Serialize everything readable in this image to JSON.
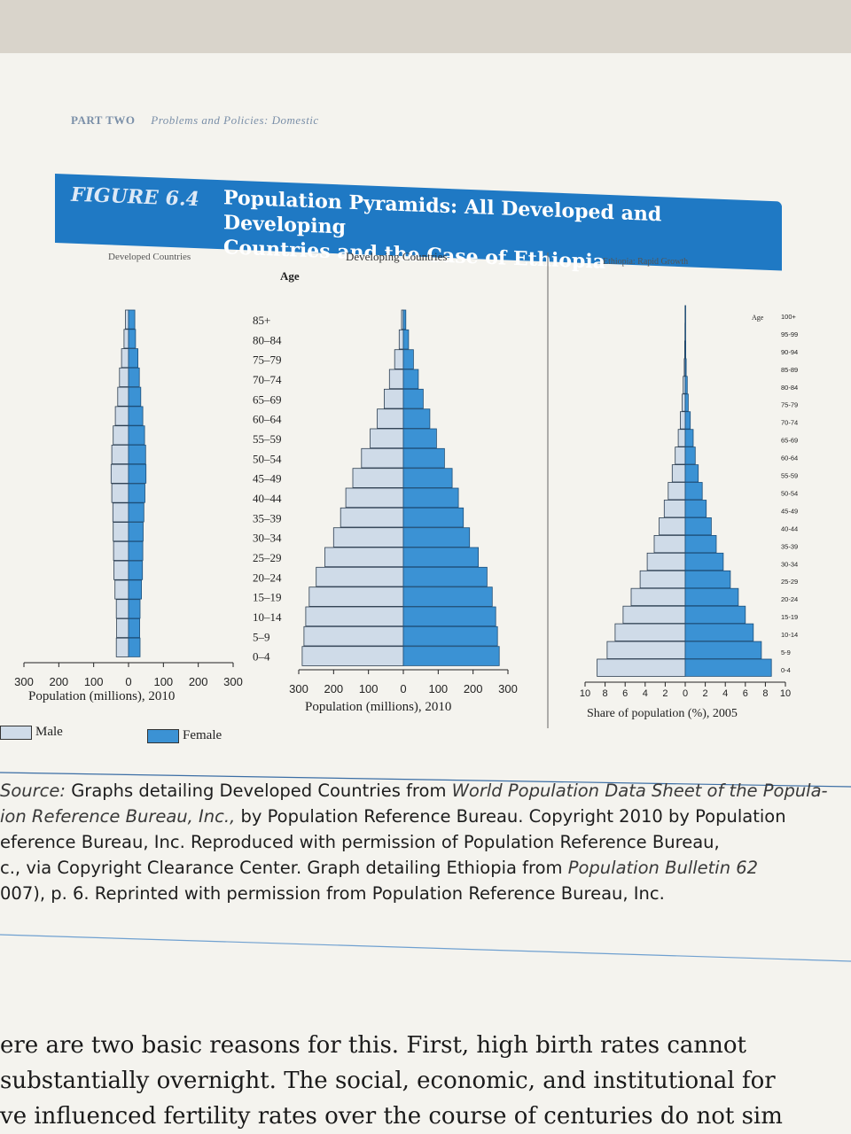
{
  "running_head": {
    "part": "PART TWO",
    "section": "Problems and Policies: Domestic"
  },
  "figure": {
    "number": "FIGURE 6.4",
    "title_line1": "Population Pyramids: All Developed and Developing",
    "title_line2": "Countries and the Case of Ethiopia"
  },
  "legend": {
    "male": "Male",
    "female": "Female"
  },
  "colors": {
    "male": "#cfdbe8",
    "female": "#3b92d4",
    "banner": "#1f79c4"
  },
  "chart_data": [
    {
      "type": "population-pyramid",
      "title": "Developed Countries",
      "xlabel": "Population (millions), 2010",
      "ticks": [
        "300",
        "200",
        "100",
        "0",
        "100",
        "200",
        "300"
      ],
      "xlim": [
        -300,
        300
      ],
      "age_groups": [
        "0-4",
        "5-9",
        "10-14",
        "15-19",
        "20-24",
        "25-29",
        "30-34",
        "35-39",
        "40-44",
        "45-49",
        "50-54",
        "55-59",
        "60-64",
        "65-69",
        "70-74",
        "75-79",
        "80-84",
        "85+"
      ],
      "series": [
        {
          "name": "Male",
          "values": [
            35,
            34,
            35,
            39,
            42,
            43,
            44,
            45,
            48,
            50,
            48,
            44,
            38,
            31,
            26,
            20,
            13,
            9
          ]
        },
        {
          "name": "Female",
          "values": [
            33,
            32,
            33,
            37,
            40,
            41,
            42,
            44,
            47,
            50,
            49,
            46,
            41,
            35,
            31,
            27,
            20,
            18
          ]
        }
      ]
    },
    {
      "type": "population-pyramid",
      "title": "Developing Countries",
      "ylabel": "Age",
      "xlabel": "Population (millions), 2010",
      "ticks": [
        "300",
        "200",
        "100",
        "0",
        "100",
        "200",
        "300"
      ],
      "xlim": [
        -300,
        300
      ],
      "age_groups": [
        "0-4",
        "5-9",
        "10-14",
        "15-19",
        "20-24",
        "25-29",
        "30-34",
        "35-39",
        "40-44",
        "45-49",
        "50-54",
        "55-59",
        "60-64",
        "65-69",
        "70-74",
        "75-79",
        "80-84",
        "85+"
      ],
      "series": [
        {
          "name": "Male",
          "values": [
            290,
            285,
            280,
            270,
            250,
            225,
            200,
            180,
            165,
            145,
            120,
            95,
            75,
            55,
            40,
            25,
            12,
            5
          ]
        },
        {
          "name": "Female",
          "values": [
            275,
            270,
            265,
            255,
            240,
            215,
            190,
            172,
            158,
            140,
            118,
            95,
            76,
            57,
            43,
            29,
            15,
            7
          ]
        }
      ]
    },
    {
      "type": "population-pyramid",
      "title": "Ethiopia: Rapid Growth",
      "ylabel": "Age",
      "xlabel": "Share of population (%), 2005",
      "ticks": [
        "10",
        "8",
        "6",
        "4",
        "2",
        "0",
        "2",
        "4",
        "6",
        "8",
        "10"
      ],
      "xlim": [
        -10,
        10
      ],
      "age_groups": [
        "0-4",
        "5-9",
        "10-14",
        "15-19",
        "20-24",
        "25-29",
        "30-34",
        "35-39",
        "40-44",
        "45-49",
        "50-54",
        "55-59",
        "60-64",
        "65-69",
        "70-74",
        "75-79",
        "80-84",
        "85-89",
        "90-94",
        "95-99",
        "100+"
      ],
      "series": [
        {
          "name": "Male",
          "values": [
            8.8,
            7.8,
            7.0,
            6.2,
            5.4,
            4.5,
            3.8,
            3.1,
            2.6,
            2.1,
            1.7,
            1.3,
            1.0,
            0.7,
            0.5,
            0.3,
            0.2,
            0.1,
            0.05,
            0.03,
            0.02
          ]
        },
        {
          "name": "Female",
          "values": [
            8.6,
            7.6,
            6.8,
            6.0,
            5.3,
            4.5,
            3.8,
            3.1,
            2.6,
            2.1,
            1.7,
            1.3,
            1.0,
            0.8,
            0.5,
            0.3,
            0.2,
            0.1,
            0.05,
            0.03,
            0.02
          ]
        }
      ]
    }
  ],
  "source": {
    "label": "Source:",
    "line1_a": "Graphs detailing Developed Countries from",
    "line1_b": "World Population Data Sheet of the Popula-",
    "line2_a": "ion Reference Bureau, Inc.,",
    "line2_b": "by Population Reference Bureau. Copyright 2010 by Population",
    "line3": "eference Bureau, Inc. Reproduced with permission of Population Reference Bureau,",
    "line4_a": "c., via Copyright Clearance Center. Graph detailing Ethiopia from",
    "line4_b": "Population Bulletin 62",
    "line5": "007), p. 6. Reprinted with permission from Population Reference Bureau, Inc."
  },
  "body_text": {
    "line1": "ere are two basic reasons for this. First, high birth rates cannot",
    "line2": "substantially overnight. The social, economic, and institutional for",
    "line3": "ve influenced fertility rates over the course of centuries do not sim"
  }
}
